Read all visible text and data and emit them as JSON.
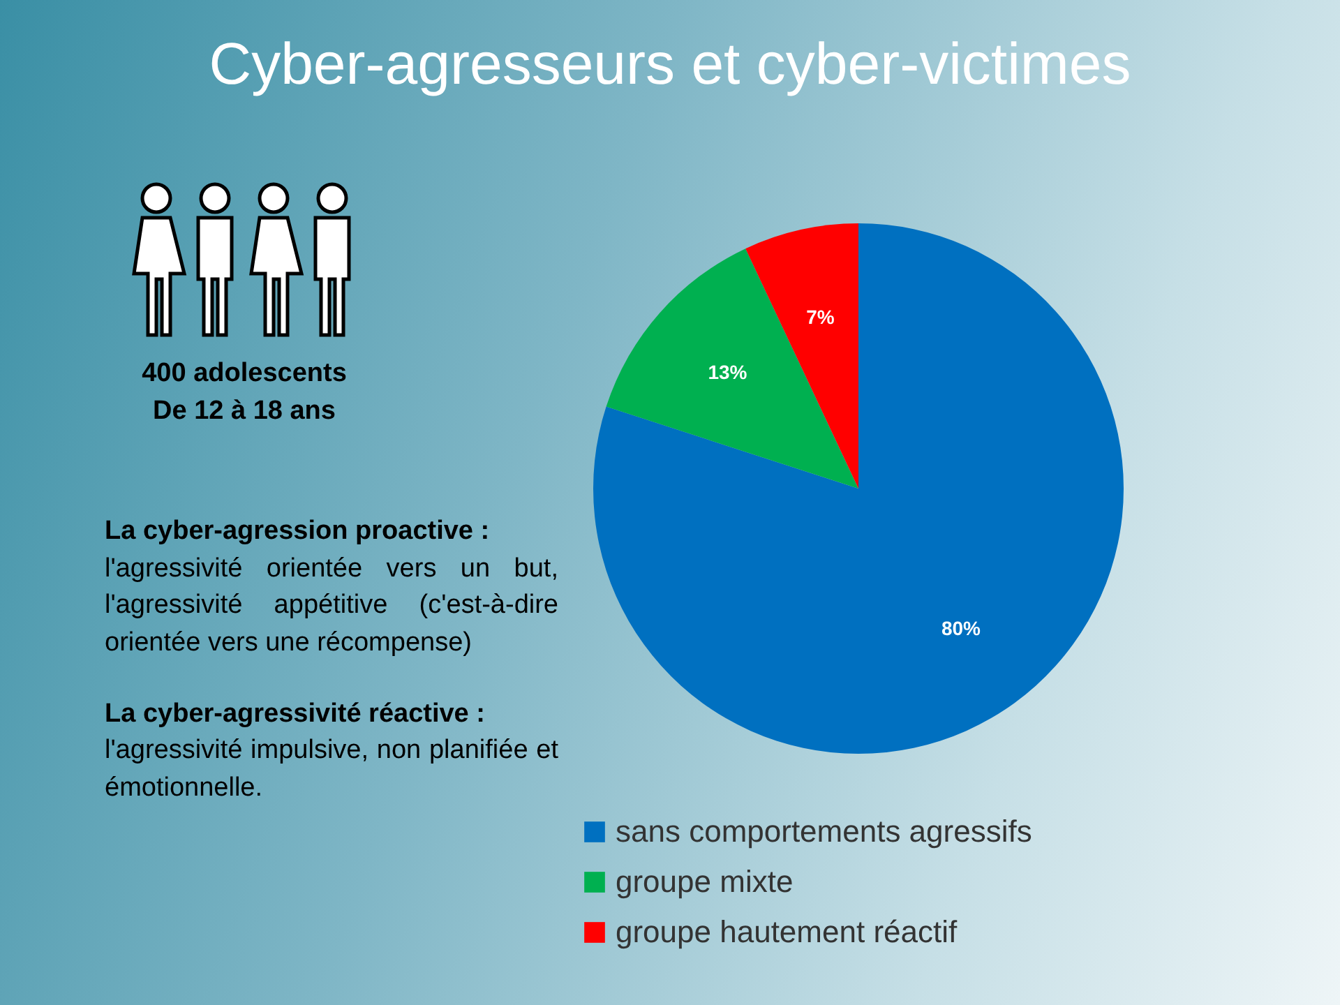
{
  "chart_data": {
    "type": "pie",
    "title": "Cyber-agresseurs et cyber-victimes",
    "categories": [
      "sans comportements agressifs",
      "groupe mixte",
      "groupe hautement réactif"
    ],
    "values": [
      80,
      13,
      7
    ],
    "colors": [
      "#0070c0",
      "#00b050",
      "#ff0000"
    ],
    "value_labels": [
      "80%",
      "13%",
      "7%"
    ],
    "legend": "bottom",
    "annotations": [
      "400 adolescents",
      "De 12  à 18 ans",
      "La cyber-agression proactive :",
      "l'agressivité orientée vers un but, l'agressivité appétitive (c'est-à-dire orientée vers une récompense)",
      "La cyber-agressivité réactive :",
      "l'agressivité impulsive, non planifiée et émotionnelle."
    ]
  }
}
